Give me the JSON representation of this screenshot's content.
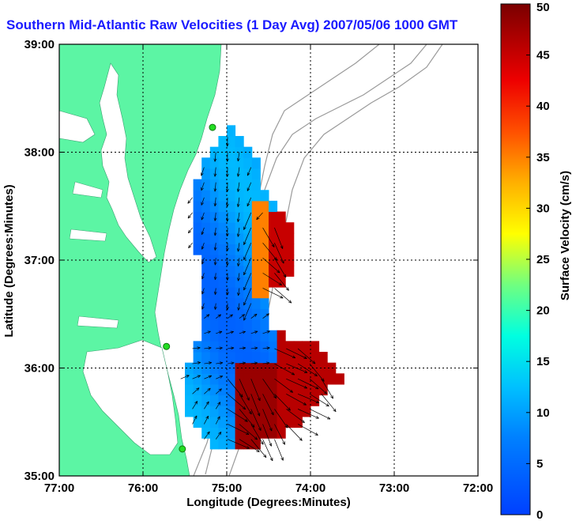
{
  "title": "Southern Mid-Atlantic Raw Velocities (1 Day Avg) 2007/05/06 1000 GMT",
  "colors": {
    "land": "#5cf5a4",
    "title": "#1a1aff",
    "arrow": "#000000",
    "bathymetry": "#9a9a9a",
    "grid": "#000000",
    "station": "#22dd22"
  },
  "chart_data": {
    "type": "heatmap",
    "subtype": "surface current vector map",
    "title": "Southern Mid-Atlantic Raw Velocities (1 Day Avg) 2007/05/06 1000 GMT",
    "xlabel": "Longitude (Degrees:Minutes)",
    "ylabel": "Latitude (Degrees:Minutes)",
    "x_ticks": [
      "77:00",
      "76:00",
      "75:00",
      "74:00",
      "73:00",
      "72:00"
    ],
    "y_ticks": [
      "39:00",
      "38:00",
      "37:00",
      "36:00",
      "35:00"
    ],
    "xlim": [
      -77,
      -72
    ],
    "ylim": [
      35,
      39
    ],
    "grid": true,
    "colorbar": {
      "label": "Surface Velocity (cm/s)",
      "range": [
        0,
        50
      ],
      "ticks": [
        "0",
        "5",
        "10",
        "15",
        "20",
        "25",
        "30",
        "35",
        "40",
        "45",
        "50"
      ],
      "colormap": "jet",
      "placement": "right"
    },
    "stations": [
      {
        "lon": -75.17,
        "lat": 38.23
      },
      {
        "lon": -75.72,
        "lat": 36.2
      },
      {
        "lon": -75.53,
        "lat": 35.25
      }
    ]
  }
}
